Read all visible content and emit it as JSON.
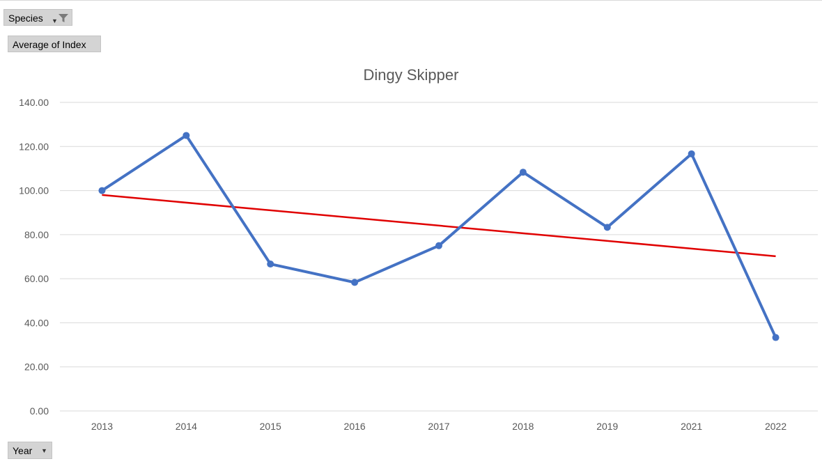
{
  "pivot": {
    "filter_label": "Species",
    "value_label": "Average of Index",
    "axis_field_label": "Year"
  },
  "icons": {
    "filter": "funnel-filter-icon",
    "dropdown": "dropdown-arrow-icon"
  },
  "colors": {
    "series": "#4472c4",
    "trendline": "#e00000",
    "gridline": "#d9d9d9",
    "text": "#595959"
  },
  "chart_data": {
    "type": "line",
    "title": "Dingy Skipper",
    "categories": [
      "2013",
      "2014",
      "2015",
      "2016",
      "2017",
      "2018",
      "2019",
      "2021",
      "2022"
    ],
    "series": [
      {
        "values": [
          100.0,
          125.0,
          66.67,
          58.33,
          75.0,
          108.33,
          83.33,
          116.67,
          33.33
        ],
        "markers": true
      }
    ],
    "trendline": {
      "type": "linear",
      "start": 98.0,
      "end": 70.2
    },
    "yticks": [
      "0.00",
      "20.00",
      "40.00",
      "60.00",
      "80.00",
      "100.00",
      "120.00",
      "140.00"
    ],
    "ylim": [
      0,
      140
    ],
    "grid": true,
    "legend": "none"
  }
}
